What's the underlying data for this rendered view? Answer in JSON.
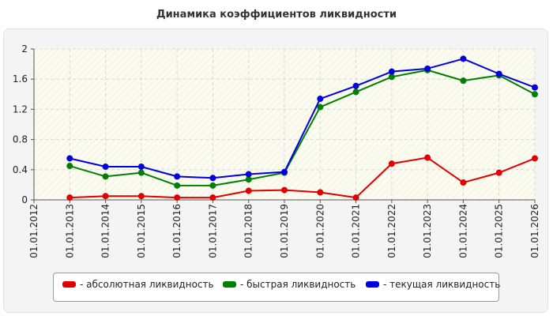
{
  "chart_data": {
    "type": "line",
    "title": "Динамика коэффициентов ликвидности",
    "xlabel": "",
    "ylabel": "",
    "ylim": [
      0,
      2
    ],
    "yticks": [
      "0",
      "0.4",
      "0.8",
      "1.2",
      "1.6",
      "2"
    ],
    "categories": [
      "01.01.2012",
      "01.01.2013",
      "01.01.2014",
      "01.01.2015",
      "01.01.2016",
      "01.01.2017",
      "01.01.2018",
      "01.01.2019",
      "01.01.2020",
      "01.01.2021",
      "01.01.2022",
      "01.01.2023",
      "01.01.2024",
      "01.01.2025",
      "01.01.2026"
    ],
    "grid": true,
    "legend_position": "bottom",
    "series": [
      {
        "name": "- абсолютная ликвидность",
        "color": "#e00000",
        "values": [
          null,
          0.03,
          0.05,
          0.05,
          0.03,
          0.03,
          0.12,
          0.13,
          0.1,
          0.03,
          0.48,
          0.56,
          0.23,
          0.36,
          0.55
        ]
      },
      {
        "name": "- быстрая ликвидность",
        "color": "#008000",
        "values": [
          null,
          0.45,
          0.31,
          0.36,
          0.19,
          0.19,
          0.27,
          0.36,
          1.23,
          1.43,
          1.63,
          1.72,
          1.58,
          1.65,
          1.4
        ]
      },
      {
        "name": "- текущая ликвидность",
        "color": "#0000e0",
        "values": [
          null,
          0.55,
          0.44,
          0.44,
          0.31,
          0.29,
          0.34,
          0.37,
          1.34,
          1.51,
          1.7,
          1.74,
          1.87,
          1.67,
          1.49
        ]
      }
    ]
  }
}
